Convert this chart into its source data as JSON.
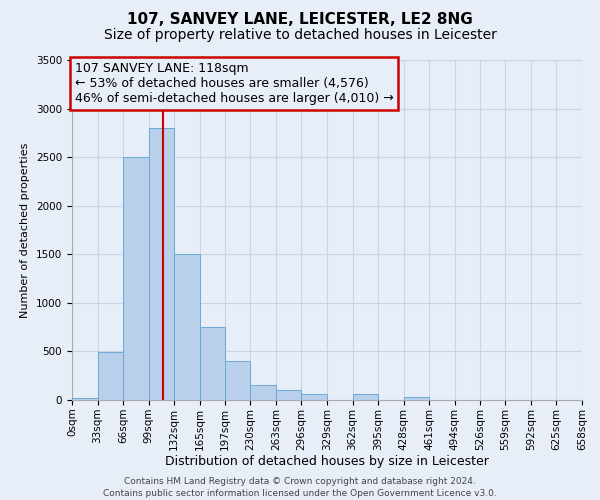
{
  "title": "107, SANVEY LANE, LEICESTER, LE2 8NG",
  "subtitle": "Size of property relative to detached houses in Leicester",
  "xlabel": "Distribution of detached houses by size in Leicester",
  "ylabel": "Number of detached properties",
  "bin_edges": [
    0,
    33,
    66,
    99,
    132,
    165,
    197,
    230,
    263,
    296,
    329,
    362,
    395,
    428,
    461,
    494,
    526,
    559,
    592,
    625,
    658
  ],
  "bar_heights": [
    25,
    490,
    2500,
    2800,
    1500,
    750,
    400,
    150,
    100,
    60,
    0,
    60,
    0,
    30,
    0,
    0,
    0,
    0,
    0,
    0
  ],
  "bar_color": "#b8d0ea",
  "bar_edge_color": "#6aaad4",
  "vline_x": 118,
  "vline_color": "#cc0000",
  "annotation_line1": "107 SANVEY LANE: 118sqm",
  "annotation_line2": "← 53% of detached houses are smaller (4,576)",
  "annotation_line3": "46% of semi-detached houses are larger (4,010) →",
  "annotation_box_color": "#cc0000",
  "ylim": [
    0,
    3500
  ],
  "yticks": [
    0,
    500,
    1000,
    1500,
    2000,
    2500,
    3000,
    3500
  ],
  "xtick_labels": [
    "0sqm",
    "33sqm",
    "66sqm",
    "99sqm",
    "132sqm",
    "165sqm",
    "197sqm",
    "230sqm",
    "263sqm",
    "296sqm",
    "329sqm",
    "362sqm",
    "395sqm",
    "428sqm",
    "461sqm",
    "494sqm",
    "526sqm",
    "559sqm",
    "592sqm",
    "625sqm",
    "658sqm"
  ],
  "grid_color": "#c8d4e8",
  "background_color": "#e8eef8",
  "footer_text": "Contains HM Land Registry data © Crown copyright and database right 2024.\nContains public sector information licensed under the Open Government Licence v3.0.",
  "title_fontsize": 11,
  "subtitle_fontsize": 10,
  "xlabel_fontsize": 9,
  "ylabel_fontsize": 8,
  "tick_fontsize": 7.5,
  "annotation_fontsize": 9,
  "footer_fontsize": 6.5
}
